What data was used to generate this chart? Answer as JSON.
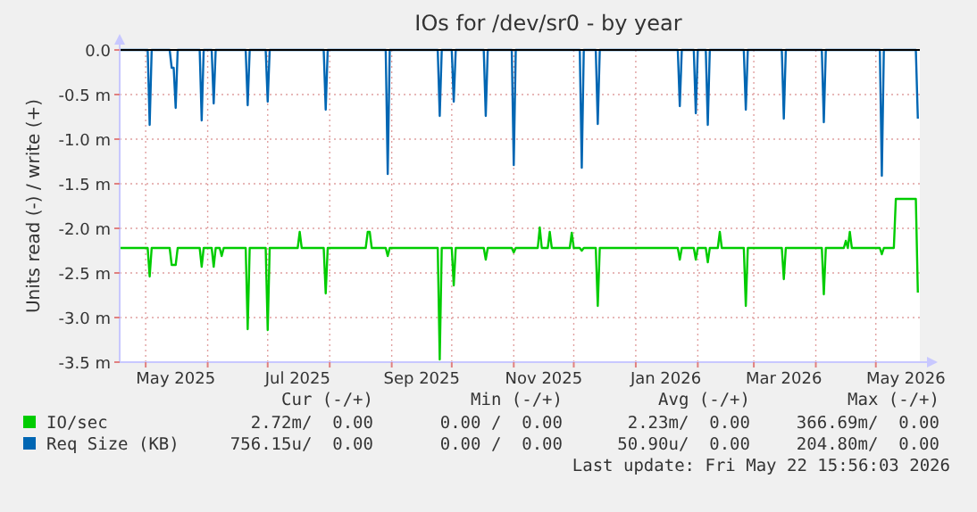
{
  "chart_data": {
    "type": "line",
    "title": "IOs for /dev/sr0 - by year",
    "ylabel": "Units read (-) / write (+)",
    "xlim": [
      "2025-04-18",
      "2026-05-23"
    ],
    "xticks": [
      {
        "value": "2025-05-01",
        "label": null
      },
      {
        "value": "2025-06-01",
        "label": null
      },
      {
        "value": "2025-07-01",
        "label": null
      },
      {
        "value": "2025-08-01",
        "label": null
      },
      {
        "value": "2025-09-01",
        "label": null
      },
      {
        "value": "2025-10-01",
        "label": null
      },
      {
        "value": "2025-11-01",
        "label": null
      },
      {
        "value": "2025-12-01",
        "label": null
      },
      {
        "value": "2026-01-01",
        "label": null
      },
      {
        "value": "2026-02-01",
        "label": null
      },
      {
        "value": "2026-03-01",
        "label": null
      },
      {
        "value": "2026-04-01",
        "label": null
      },
      {
        "value": "2026-05-01",
        "label": null
      },
      {
        "value": "2025-05-16",
        "label": "May 2025"
      },
      {
        "value": "2025-07-16",
        "label": "Jul 2025"
      },
      {
        "value": "2025-09-16",
        "label": "Sep 2025"
      },
      {
        "value": "2025-11-16",
        "label": "Nov 2025"
      },
      {
        "value": "2026-01-16",
        "label": "Jan 2026"
      },
      {
        "value": "2026-03-16",
        "label": "Mar 2026"
      },
      {
        "value": "2026-05-16",
        "label": "May 2026"
      }
    ],
    "ylim": [
      -3.5,
      0
    ],
    "yticks": [
      {
        "value": 0,
        "label": "0.0"
      },
      {
        "value": -0.5,
        "label": "-0.5 m"
      },
      {
        "value": -1,
        "label": "-1.0 m"
      },
      {
        "value": -1.5,
        "label": "-1.5 m"
      },
      {
        "value": -2,
        "label": "-2.0 m"
      },
      {
        "value": -2.5,
        "label": "-2.5 m"
      },
      {
        "value": -3,
        "label": "-3.0 m"
      },
      {
        "value": -3.5,
        "label": "-3.5 m"
      }
    ],
    "grid": true,
    "legend": "bottom",
    "line_style": "solid",
    "series": [
      {
        "name": "IO/sec",
        "color": "#00cc00",
        "x": [
          "2025-04-18",
          "2025-05-02",
          "2025-05-03",
          "2025-05-04",
          "2025-05-13",
          "2025-05-14",
          "2025-05-16",
          "2025-05-17",
          "2025-05-28",
          "2025-05-29",
          "2025-05-30",
          "2025-06-03",
          "2025-06-04",
          "2025-06-05",
          "2025-06-07",
          "2025-06-08",
          "2025-06-09",
          "2025-06-20",
          "2025-06-21",
          "2025-06-22",
          "2025-06-30",
          "2025-07-01",
          "2025-07-02",
          "2025-07-16",
          "2025-07-17",
          "2025-07-18",
          "2025-07-29",
          "2025-07-30",
          "2025-07-31",
          "2025-08-19",
          "2025-08-20",
          "2025-08-21",
          "2025-08-22",
          "2025-08-29",
          "2025-08-30",
          "2025-08-31",
          "2025-09-24",
          "2025-09-25",
          "2025-09-26",
          "2025-10-01",
          "2025-10-02",
          "2025-10-03",
          "2025-10-17",
          "2025-10-18",
          "2025-10-19",
          "2025-10-31",
          "2025-11-01",
          "2025-11-02",
          "2025-11-13",
          "2025-11-14",
          "2025-11-15",
          "2025-11-18",
          "2025-11-19",
          "2025-11-20",
          "2025-11-29",
          "2025-11-30",
          "2025-12-01",
          "2025-12-04",
          "2025-12-05",
          "2025-12-06",
          "2025-12-12",
          "2025-12-13",
          "2025-12-14",
          "2026-01-22",
          "2026-01-23",
          "2026-01-24",
          "2026-01-30",
          "2026-01-31",
          "2026-02-01",
          "2026-02-05",
          "2026-02-06",
          "2026-02-07",
          "2026-02-11",
          "2026-02-12",
          "2026-02-13",
          "2026-02-24",
          "2026-02-25",
          "2026-02-26",
          "2026-03-15",
          "2026-03-16",
          "2026-03-17",
          "2026-04-04",
          "2026-04-05",
          "2026-04-06",
          "2026-04-15",
          "2026-04-16",
          "2026-04-17",
          "2026-04-18",
          "2026-04-19",
          "2026-05-03",
          "2026-05-04",
          "2026-05-05",
          "2026-05-10",
          "2026-05-11",
          "2026-05-21",
          "2026-05-22"
        ],
        "values": [
          -2.22,
          -2.22,
          -2.54,
          -2.22,
          -2.22,
          -2.41,
          -2.41,
          -2.22,
          -2.22,
          -2.43,
          -2.22,
          -2.22,
          -2.43,
          -2.22,
          -2.22,
          -2.31,
          -2.22,
          -2.22,
          -3.13,
          -2.22,
          -2.22,
          -3.14,
          -2.22,
          -2.22,
          -2.04,
          -2.22,
          -2.22,
          -2.73,
          -2.22,
          -2.22,
          -2.04,
          -2.04,
          -2.22,
          -2.22,
          -2.31,
          -2.22,
          -2.22,
          -3.47,
          -2.22,
          -2.22,
          -2.64,
          -2.22,
          -2.22,
          -2.35,
          -2.22,
          -2.22,
          -2.27,
          -2.22,
          -2.22,
          -1.99,
          -2.22,
          -2.22,
          -2.04,
          -2.22,
          -2.22,
          -2.05,
          -2.22,
          -2.22,
          -2.25,
          -2.22,
          -2.22,
          -2.87,
          -2.22,
          -2.22,
          -2.35,
          -2.22,
          -2.22,
          -2.35,
          -2.22,
          -2.22,
          -2.38,
          -2.22,
          -2.22,
          -2.04,
          -2.22,
          -2.22,
          -2.87,
          -2.22,
          -2.22,
          -2.57,
          -2.22,
          -2.22,
          -2.74,
          -2.22,
          -2.22,
          -2.14,
          -2.22,
          -2.04,
          -2.22,
          -2.22,
          -2.29,
          -2.22,
          -2.22,
          -1.67,
          -1.67,
          -2.72
        ]
      },
      {
        "name": "Req Size (KB)",
        "color": "#0066b3",
        "x": [
          "2025-04-18",
          "2025-05-02",
          "2025-05-03",
          "2025-05-04",
          "2025-05-13",
          "2025-05-14",
          "2025-05-15",
          "2025-05-16",
          "2025-05-17",
          "2025-05-28",
          "2025-05-29",
          "2025-05-30",
          "2025-06-03",
          "2025-06-04",
          "2025-06-05",
          "2025-06-20",
          "2025-06-21",
          "2025-06-22",
          "2025-06-30",
          "2025-07-01",
          "2025-07-02",
          "2025-07-29",
          "2025-07-30",
          "2025-07-31",
          "2025-08-29",
          "2025-08-30",
          "2025-08-31",
          "2025-09-24",
          "2025-09-25",
          "2025-09-26",
          "2025-10-01",
          "2025-10-02",
          "2025-10-03",
          "2025-10-17",
          "2025-10-18",
          "2025-10-19",
          "2025-10-31",
          "2025-11-01",
          "2025-11-02",
          "2025-12-04",
          "2025-12-05",
          "2025-12-06",
          "2025-12-12",
          "2025-12-13",
          "2025-12-14",
          "2026-01-22",
          "2026-01-23",
          "2026-01-24",
          "2026-01-30",
          "2026-01-31",
          "2026-02-01",
          "2026-02-05",
          "2026-02-06",
          "2026-02-07",
          "2026-02-24",
          "2026-02-25",
          "2026-02-26",
          "2026-03-15",
          "2026-03-16",
          "2026-03-17",
          "2026-04-04",
          "2026-04-05",
          "2026-04-06",
          "2026-05-03",
          "2026-05-04",
          "2026-05-05",
          "2026-05-21",
          "2026-05-22"
        ],
        "values": [
          0,
          0,
          -0.84,
          0,
          0,
          -0.2,
          -0.2,
          -0.65,
          0,
          0,
          -0.79,
          0,
          0,
          -0.6,
          0,
          0,
          -0.62,
          0,
          0,
          -0.58,
          0,
          0,
          -0.67,
          0,
          0,
          -1.39,
          0,
          0,
          -0.74,
          0,
          0,
          -0.58,
          0,
          0,
          -0.74,
          0,
          0,
          -1.29,
          0,
          0,
          -1.32,
          0,
          0,
          -0.83,
          0,
          0,
          -0.63,
          0,
          0,
          -0.71,
          0,
          0,
          -0.84,
          0,
          0,
          -0.67,
          0,
          0,
          -0.77,
          0,
          0,
          -0.81,
          0,
          0,
          -1.41,
          0,
          0,
          -0.77
        ]
      }
    ],
    "annotations": [
      "Cur (-/+)",
      "Min (-/+)",
      "Avg (-/+)",
      "Max (-/+)",
      "2.72m/  0.00",
      "0.00 /  0.00",
      "2.23m/  0.00",
      "366.69m/  0.00",
      "756.15u/  0.00",
      "0.00 /  0.00",
      "50.90u/  0.00",
      "204.80m/  0.00",
      "Last update: Fri May 22 15:56:03 2026"
    ]
  }
}
